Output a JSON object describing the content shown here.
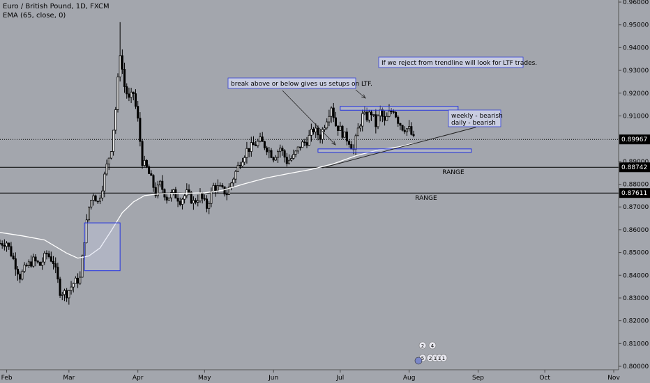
{
  "header": {
    "symbol": "Euro / British Pound, 1D, FXCM",
    "indicator": "EMA (65, close, 0)"
  },
  "colors": {
    "background": "#a3a6ad",
    "candle_up": "#000000",
    "candle_down": "#000000",
    "ema": "#ffffff",
    "annotation_box_fill": "#c9cde0",
    "annotation_box_stroke": "#3340d8",
    "zone_stroke": "#2433e0",
    "price_label_bg": "#000000",
    "price_label_text": "#ffffff"
  },
  "chart_data": {
    "type": "candlestick",
    "ylim": [
      0.8,
      0.96
    ],
    "y_ticks": [
      "0.96000",
      "0.95000",
      "0.94000",
      "0.93000",
      "0.92000",
      "0.91000",
      "0.90000",
      "0.89000",
      "0.88000",
      "0.87000",
      "0.86000",
      "0.85000",
      "0.84000",
      "0.83000",
      "0.82000",
      "0.81000",
      "0.80000"
    ],
    "x_labels": [
      "Feb",
      "Mar",
      "Apr",
      "May",
      "Jun",
      "Jul",
      "Aug",
      "Sep",
      "Oct",
      "Nov"
    ],
    "x_label_days": [
      3,
      31,
      62,
      92,
      123,
      153,
      184,
      215,
      245,
      276
    ],
    "x_range_days": [
      0,
      276
    ],
    "last_bar_day": 186,
    "price_labels": [
      {
        "value": 0.89967,
        "text": "0.89967",
        "style": "dotted"
      },
      {
        "value": 0.88742,
        "text": "0.88742",
        "style": "solid"
      },
      {
        "value": 0.87611,
        "text": "0.87611",
        "style": "solid"
      }
    ],
    "ema_label": "EMA (65, close, 0)",
    "ema_points": [
      [
        0,
        0.8588
      ],
      [
        10,
        0.8573
      ],
      [
        20,
        0.8555
      ],
      [
        30,
        0.8497
      ],
      [
        35,
        0.8475
      ],
      [
        40,
        0.8485
      ],
      [
        45,
        0.852
      ],
      [
        50,
        0.8595
      ],
      [
        55,
        0.8675
      ],
      [
        60,
        0.8722
      ],
      [
        65,
        0.875
      ],
      [
        72,
        0.8758
      ],
      [
        82,
        0.876
      ],
      [
        92,
        0.8762
      ],
      [
        100,
        0.8773
      ],
      [
        110,
        0.8802
      ],
      [
        120,
        0.8828
      ],
      [
        130,
        0.8847
      ],
      [
        140,
        0.8865
      ],
      [
        150,
        0.889
      ],
      [
        160,
        0.8925
      ],
      [
        170,
        0.895
      ],
      [
        180,
        0.8965
      ],
      [
        186,
        0.898
      ]
    ],
    "candle_anchor_points": [
      [
        0,
        0.854
      ],
      [
        3,
        0.8545
      ],
      [
        6,
        0.847
      ],
      [
        9,
        0.8395
      ],
      [
        12,
        0.844
      ],
      [
        15,
        0.8465
      ],
      [
        18,
        0.8445
      ],
      [
        21,
        0.8495
      ],
      [
        24,
        0.846
      ],
      [
        27,
        0.833
      ],
      [
        30,
        0.832
      ],
      [
        33,
        0.8365
      ],
      [
        36,
        0.8385
      ],
      [
        38,
        0.856
      ],
      [
        40,
        0.87
      ],
      [
        42,
        0.876
      ],
      [
        44,
        0.872
      ],
      [
        46,
        0.879
      ],
      [
        48,
        0.888
      ],
      [
        50,
        0.896
      ],
      [
        52,
        0.913
      ],
      [
        54,
        0.938
      ],
      [
        56,
        0.923
      ],
      [
        58,
        0.917
      ],
      [
        60,
        0.92
      ],
      [
        62,
        0.908
      ],
      [
        64,
        0.89
      ],
      [
        66,
        0.887
      ],
      [
        68,
        0.882
      ],
      [
        70,
        0.876
      ],
      [
        72,
        0.88
      ],
      [
        75,
        0.874
      ],
      [
        78,
        0.876
      ],
      [
        81,
        0.873
      ],
      [
        84,
        0.876
      ],
      [
        87,
        0.872
      ],
      [
        90,
        0.875
      ],
      [
        93,
        0.87
      ],
      [
        96,
        0.879
      ],
      [
        99,
        0.878
      ],
      [
        102,
        0.876
      ],
      [
        105,
        0.883
      ],
      [
        108,
        0.89
      ],
      [
        111,
        0.895
      ],
      [
        114,
        0.897
      ],
      [
        117,
        0.899
      ],
      [
        120,
        0.896
      ],
      [
        123,
        0.892
      ],
      [
        126,
        0.896
      ],
      [
        129,
        0.89
      ],
      [
        132,
        0.892
      ],
      [
        135,
        0.897
      ],
      [
        138,
        0.899
      ],
      [
        141,
        0.904
      ],
      [
        144,
        0.901
      ],
      [
        147,
        0.909
      ],
      [
        149,
        0.9145
      ],
      [
        151,
        0.906
      ],
      [
        153,
        0.904
      ],
      [
        155,
        0.901
      ],
      [
        157,
        0.899
      ],
      [
        159,
        0.895
      ],
      [
        161,
        0.904
      ],
      [
        163,
        0.91
      ],
      [
        165,
        0.9095
      ],
      [
        167,
        0.9115
      ],
      [
        169,
        0.906
      ],
      [
        171,
        0.912
      ],
      [
        173,
        0.907
      ],
      [
        175,
        0.911
      ],
      [
        177,
        0.913
      ],
      [
        179,
        0.908
      ],
      [
        181,
        0.905
      ],
      [
        184,
        0.904
      ],
      [
        186,
        0.8997
      ]
    ],
    "annotations": [
      {
        "text": "break above or below gives us setups on LTF.",
        "type": "box"
      },
      {
        "text": "If we reject from trendline will look for LTF trades.",
        "type": "box"
      },
      {
        "text": "weekly - bearish",
        "type": "box"
      },
      {
        "text": "daily - bearish",
        "type": "box"
      },
      {
        "text": "RANGE",
        "type": "label",
        "level": 0.88742
      },
      {
        "text": "RANGE",
        "type": "label",
        "level": 0.87611
      }
    ],
    "zones": [
      {
        "name": "march-breakout-box",
        "x0": 38,
        "x1": 54,
        "y0": 0.863,
        "y1": 0.842
      },
      {
        "name": "upper-range-box",
        "x0": 153,
        "x1": 206,
        "y0": 0.9142,
        "y1": 0.9125
      },
      {
        "name": "lower-range-box",
        "x0": 143,
        "x1": 212,
        "y0": 0.8955,
        "y1": 0.894
      }
    ],
    "trendline": {
      "x0": 145,
      "y0": 0.8872,
      "x1": 214,
      "y1": 0.905
    },
    "event_badges": [
      "2",
      "4",
      "5",
      "2",
      "1",
      "1",
      "1"
    ]
  }
}
